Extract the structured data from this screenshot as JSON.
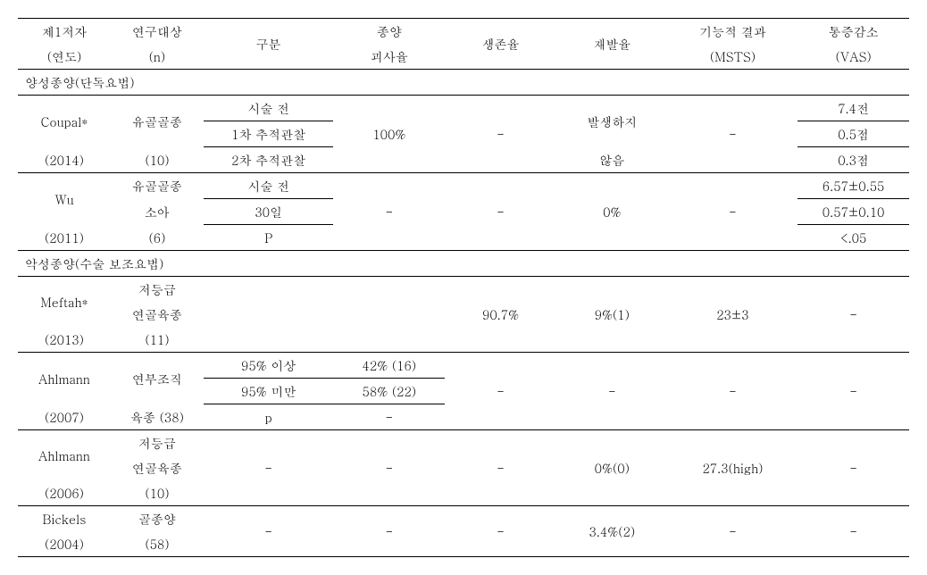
{
  "headers": {
    "c1a": "제1저자",
    "c1b": "(연도)",
    "c2a": "연구대상",
    "c2b": "(n)",
    "c3": "구분",
    "c4a": "종양",
    "c4b": "괴사율",
    "c5": "생존율",
    "c6": "재발율",
    "c7a": "기능적 결과",
    "c7b": "(MSTS)",
    "c8a": "통증감소",
    "c8b": "(VAS)"
  },
  "section1_title": "양성종양(단독요법)",
  "section2_title": "악성종양(수술 보조요법)",
  "dash": "-",
  "coupal": {
    "author": "Coupal*",
    "year": "(2014)",
    "subject1": "유골골종",
    "subject2": "(10)",
    "row1_c3": "시술 전",
    "row2_c3": "1차 추적관찰",
    "row3_c3": "2차 추적관찰",
    "c4": "100%",
    "c6a": "발생하지",
    "c6b": "않음",
    "c8_1": "7.4전",
    "c8_2": "0.5점",
    "c8_3": "0.3점"
  },
  "wu": {
    "author": "Wu",
    "year": "(2011)",
    "subject1": "유골골종",
    "subject2": "소아",
    "subject3": "(6)",
    "row1_c3": "시술 전",
    "row2_c3": "30일",
    "row3_c3": "P",
    "c6": "0%",
    "c8_1": "6.57±0.55",
    "c8_2": "0.57±0.10",
    "c8_3": "<.05"
  },
  "meftah": {
    "author": "Meftah*",
    "year": "(2013)",
    "subject1": "저등급",
    "subject2": "연골육종",
    "subject3": "(11)",
    "c5": "90.7%",
    "c6": "9%(1)",
    "c7": "23±3"
  },
  "ahlmann07": {
    "author": "Ahlmann",
    "year": "(2007)",
    "subject1": "연부조직",
    "subject2": "육종 (38)",
    "row1_c3": "95% 이상",
    "row1_c4": "42% (16)",
    "row2_c3": "95% 미만",
    "row2_c4": "58% (22)",
    "row3_c3": "p",
    "row3_c4": "-"
  },
  "ahlmann06": {
    "author": "Ahlmann",
    "year": "(2006)",
    "subject1": "저등급",
    "subject2": "연골육종",
    "subject3": "(10)",
    "c6": "0%(0)",
    "c7": "27.3(high)"
  },
  "bickels": {
    "author": "Bickels",
    "year": "(2004)",
    "subject1": "골종양",
    "subject2": "(58)",
    "c6": "3.4%(2)"
  }
}
